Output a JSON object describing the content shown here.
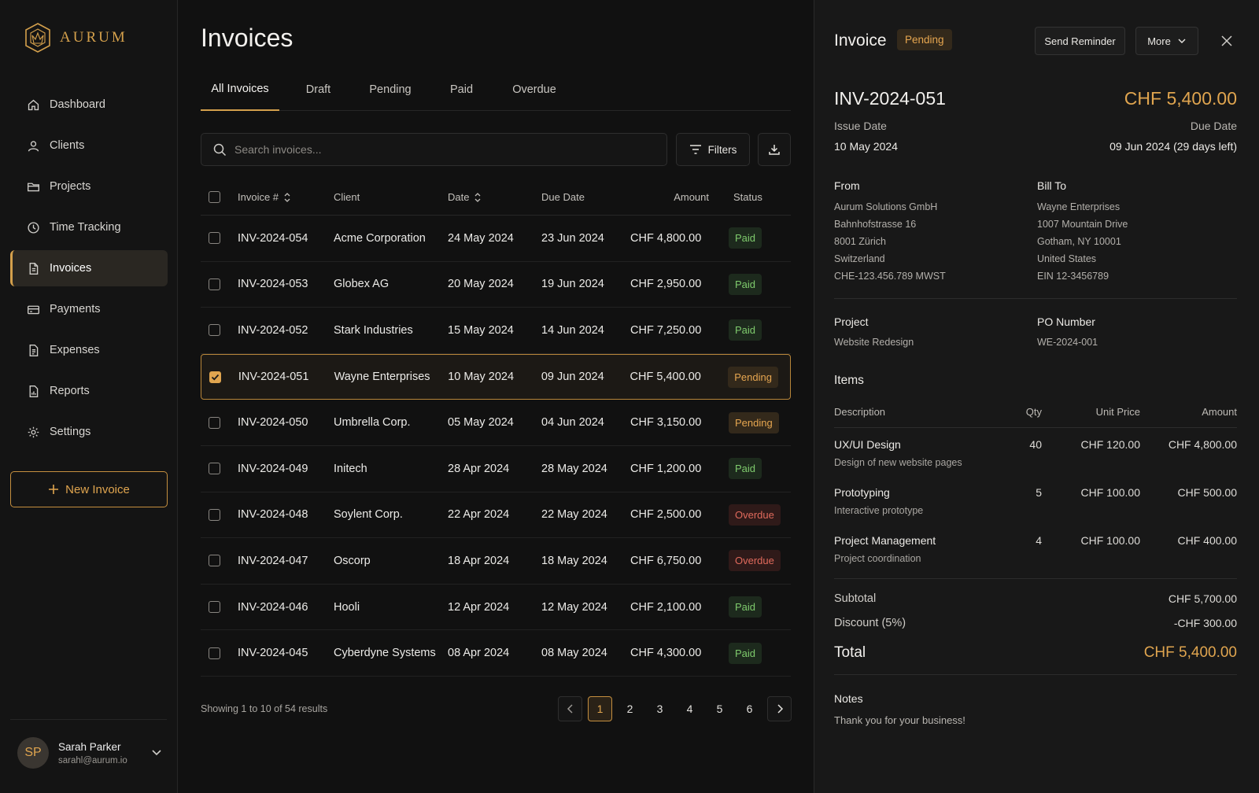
{
  "app": {
    "name": "AURUM",
    "accent": "#d4a04c"
  },
  "sidebar": {
    "items": [
      {
        "label": "Dashboard",
        "icon": "home-icon"
      },
      {
        "label": "Clients",
        "icon": "user-icon"
      },
      {
        "label": "Projects",
        "icon": "folder-icon"
      },
      {
        "label": "Time Tracking",
        "icon": "clock-icon"
      },
      {
        "label": "Invoices",
        "icon": "file-icon",
        "active": true
      },
      {
        "label": "Payments",
        "icon": "card-icon"
      },
      {
        "label": "Expenses",
        "icon": "receipt-icon"
      },
      {
        "label": "Reports",
        "icon": "report-icon"
      },
      {
        "label": "Settings",
        "icon": "gear-icon"
      }
    ],
    "new_invoice_label": "New Invoice",
    "user": {
      "initials": "SP",
      "name": "Sarah Parker",
      "email": "sarahl@aurum.io"
    }
  },
  "main": {
    "title": "Invoices",
    "tabs": [
      "All Invoices",
      "Draft",
      "Pending",
      "Paid",
      "Overdue"
    ],
    "active_tab": "All Invoices",
    "search_placeholder": "Search invoices...",
    "filters_label": "Filters",
    "columns": {
      "invoice": "Invoice #",
      "client": "Client",
      "date": "Date",
      "due": "Due Date",
      "amount": "Amount",
      "status": "Status"
    },
    "rows": [
      {
        "invoice": "INV-2024-054",
        "client": "Acme Corporation",
        "date": "24 May 2024",
        "due": "23 Jun 2024",
        "amount": "CHF 4,800.00",
        "status": "Paid"
      },
      {
        "invoice": "INV-2024-053",
        "client": "Globex AG",
        "date": "20 May 2024",
        "due": "19 Jun 2024",
        "amount": "CHF 2,950.00",
        "status": "Paid"
      },
      {
        "invoice": "INV-2024-052",
        "client": "Stark Industries",
        "date": "15 May 2024",
        "due": "14 Jun 2024",
        "amount": "CHF 7,250.00",
        "status": "Paid"
      },
      {
        "invoice": "INV-2024-051",
        "client": "Wayne Enterprises",
        "date": "10 May 2024",
        "due": "09 Jun 2024",
        "amount": "CHF 5,400.00",
        "status": "Pending",
        "selected": true
      },
      {
        "invoice": "INV-2024-050",
        "client": "Umbrella Corp.",
        "date": "05 May 2024",
        "due": "04 Jun 2024",
        "amount": "CHF 3,150.00",
        "status": "Pending"
      },
      {
        "invoice": "INV-2024-049",
        "client": "Initech",
        "date": "28 Apr 2024",
        "due": "28 May 2024",
        "amount": "CHF 1,200.00",
        "status": "Paid"
      },
      {
        "invoice": "INV-2024-048",
        "client": "Soylent Corp.",
        "date": "22 Apr 2024",
        "due": "22 May 2024",
        "amount": "CHF 2,500.00",
        "status": "Overdue"
      },
      {
        "invoice": "INV-2024-047",
        "client": "Oscorp",
        "date": "18 Apr 2024",
        "due": "18 May 2024",
        "amount": "CHF 6,750.00",
        "status": "Overdue"
      },
      {
        "invoice": "INV-2024-046",
        "client": "Hooli",
        "date": "12 Apr 2024",
        "due": "12 May 2024",
        "amount": "CHF 2,100.00",
        "status": "Paid"
      },
      {
        "invoice": "INV-2024-045",
        "client": "Cyberdyne Systems",
        "date": "08 Apr 2024",
        "due": "08 May 2024",
        "amount": "CHF 4,300.00",
        "status": "Paid"
      }
    ],
    "pagination": {
      "info": "Showing 1 to 10 of 54 results",
      "pages": [
        "1",
        "2",
        "3",
        "4",
        "5",
        "6"
      ],
      "current": "1"
    }
  },
  "detail": {
    "title": "Invoice",
    "status": "Pending",
    "send_reminder_label": "Send Reminder",
    "more_label": "More",
    "number": "INV-2024-051",
    "total_top": "CHF 5,400.00",
    "issue_date_label": "Issue Date",
    "issue_date": "10 May 2024",
    "due_date_label": "Due Date",
    "due_date": "09 Jun 2024 (29 days left)",
    "from": {
      "label": "From",
      "lines": [
        "Aurum Solutions GmbH",
        "Bahnhofstrasse 16",
        "8001 Zürich",
        "Switzerland",
        "CHE-123.456.789 MWST"
      ]
    },
    "bill_to": {
      "label": "Bill To",
      "lines": [
        "Wayne Enterprises",
        "1007 Mountain Drive",
        "Gotham, NY 10001",
        "United States",
        "EIN 12-3456789"
      ]
    },
    "project_label": "Project",
    "project": "Website Redesign",
    "po_label": "PO Number",
    "po": "WE-2024-001",
    "items_title": "Items",
    "items_columns": {
      "description": "Description",
      "qty": "Qty",
      "unit_price": "Unit Price",
      "amount": "Amount"
    },
    "items": [
      {
        "description": "UX/UI Design",
        "sub": "Design of new website pages",
        "qty": "40",
        "unit_price": "CHF 120.00",
        "amount": "CHF 4,800.00"
      },
      {
        "description": "Prototyping",
        "sub": "Interactive prototype",
        "qty": "5",
        "unit_price": "CHF 100.00",
        "amount": "CHF 500.00"
      },
      {
        "description": "Project Management",
        "sub": "Project coordination",
        "qty": "4",
        "unit_price": "CHF 100.00",
        "amount": "CHF 400.00"
      }
    ],
    "subtotal_label": "Subtotal",
    "subtotal": "CHF 5,700.00",
    "discount_label": "Discount (5%)",
    "discount": "-CHF 300.00",
    "total_label": "Total",
    "total": "CHF 5,400.00",
    "notes_label": "Notes",
    "notes": "Thank you for your business!"
  },
  "colors": {
    "paid": "#7fcb6d",
    "pending": "#e6a650",
    "overdue": "#e06a5c",
    "gold": "#e0a54f"
  }
}
